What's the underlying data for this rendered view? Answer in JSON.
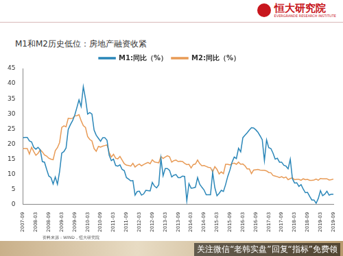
{
  "brand": {
    "name": "恒大研究院",
    "subtitle": "EVERGRANDE RESEARCH INSTITUTE"
  },
  "chart_data": {
    "type": "line",
    "title": "M1和M2历史低位：房地产融资收紧",
    "source": "资料来源：WIND，恒大研究院",
    "categories": [
      "2007-09",
      null,
      null,
      null,
      null,
      null,
      "2008-03",
      null,
      null,
      null,
      null,
      null,
      "2008-09",
      null,
      null,
      null,
      null,
      null,
      "2009-03",
      null,
      null,
      null,
      null,
      null,
      "2009-09",
      null,
      null,
      null,
      null,
      null,
      "2010-03",
      null,
      null,
      null,
      null,
      null,
      "2010-09",
      null,
      null,
      null,
      null,
      null,
      "2011-03",
      null,
      null,
      null,
      null,
      null,
      "2011-09",
      null,
      null,
      null,
      null,
      null,
      "2012-03",
      null,
      null,
      null,
      null,
      null,
      "2012-09",
      null,
      null,
      null,
      null,
      null,
      "2013-03",
      null,
      null,
      null,
      null,
      null,
      "2013-09",
      null,
      null,
      null,
      null,
      null,
      "2014-03",
      null,
      null,
      null,
      null,
      null,
      "2014-09",
      null,
      null,
      null,
      null,
      null,
      "2015-03",
      null,
      null,
      null,
      null,
      null,
      "2015-09",
      null,
      null,
      null,
      null,
      null,
      "2016-03",
      null,
      null,
      null,
      null,
      null,
      "2016-09",
      null,
      null,
      null,
      null,
      null,
      "2017-03",
      null,
      null,
      null,
      null,
      null,
      "2017-09",
      null,
      null,
      null,
      null,
      null,
      "2018-03",
      null,
      null,
      null,
      null,
      null,
      "2018-09",
      null,
      null,
      null,
      null,
      null,
      "2019-03",
      null,
      null,
      null,
      null,
      null,
      "2019-09"
    ],
    "series": [
      {
        "name": "M1:同比（%）",
        "color": "#2a86b8",
        "values": [
          22.1,
          22.2,
          22.2,
          21.0,
          20.7,
          18.9,
          18.3,
          18.9,
          18.1,
          14.2,
          14.0,
          11.6,
          9.4,
          8.9,
          6.8,
          9.1,
          6.7,
          10.9,
          17.0,
          17.5,
          18.7,
          24.8,
          26.4,
          27.7,
          29.5,
          32.0,
          34.6,
          32.4,
          39.0,
          35.0,
          29.9,
          30.4,
          29.9,
          24.6,
          22.9,
          21.9,
          20.9,
          22.1,
          22.1,
          21.2,
          16.3,
          14.5,
          15.0,
          12.9,
          12.7,
          13.1,
          11.6,
          11.2,
          8.9,
          8.4,
          7.8,
          7.9,
          3.1,
          4.3,
          4.4,
          3.1,
          3.5,
          4.7,
          4.6,
          4.5,
          7.3,
          6.1,
          5.5,
          6.5,
          15.3,
          9.5,
          11.9,
          11.9,
          11.3,
          9.1,
          9.7,
          9.9,
          8.9,
          8.9,
          9.4,
          9.3,
          1.2,
          6.9,
          5.4,
          5.5,
          5.7,
          8.9,
          6.7,
          5.7,
          4.8,
          3.2,
          3.2,
          3.2,
          10.6,
          5.6,
          2.9,
          3.7,
          4.7,
          4.3,
          6.6,
          9.3,
          11.4,
          14.0,
          15.7,
          15.2,
          18.6,
          17.4,
          22.1,
          22.9,
          23.7,
          24.6,
          25.4,
          25.3,
          24.7,
          23.9,
          22.7,
          21.4,
          14.5,
          21.4,
          18.8,
          18.5,
          17.0,
          15.0,
          15.3,
          14.0,
          14.0,
          13.0,
          12.7,
          11.8,
          15.0,
          8.5,
          7.1,
          7.2,
          6.0,
          6.6,
          5.1,
          3.9,
          4.0,
          2.7,
          1.5,
          1.5,
          0.4,
          2.0,
          4.6,
          2.9,
          3.4,
          4.4,
          3.1,
          3.4,
          3.4
        ]
      },
      {
        "name": "M2:同比（%）",
        "color": "#e89a55",
        "values": [
          18.5,
          18.5,
          18.5,
          16.7,
          18.9,
          17.5,
          16.3,
          16.9,
          18.1,
          17.4,
          16.4,
          16.0,
          15.3,
          15.0,
          14.8,
          17.8,
          18.8,
          20.5,
          25.5,
          26.0,
          25.7,
          28.5,
          28.4,
          28.5,
          29.3,
          29.4,
          29.7,
          27.7,
          26.1,
          25.5,
          22.5,
          21.5,
          21.0,
          18.5,
          17.6,
          19.2,
          19.0,
          19.3,
          19.5,
          19.7,
          17.2,
          15.7,
          16.6,
          15.3,
          15.1,
          15.9,
          14.7,
          13.5,
          13.0,
          12.9,
          12.7,
          13.6,
          12.4,
          13.0,
          13.4,
          12.8,
          13.2,
          13.6,
          13.9,
          13.5,
          14.8,
          14.1,
          13.9,
          13.8,
          15.9,
          15.2,
          15.7,
          16.1,
          15.8,
          14.0,
          14.5,
          14.7,
          14.2,
          14.3,
          14.2,
          13.6,
          13.2,
          13.3,
          12.1,
          13.2,
          13.4,
          14.7,
          13.5,
          12.8,
          12.9,
          12.6,
          12.3,
          12.2,
          10.8,
          12.5,
          11.6,
          10.1,
          10.8,
          10.2,
          13.3,
          13.3,
          13.1,
          13.5,
          13.7,
          13.3,
          14.0,
          13.3,
          13.4,
          12.8,
          11.8,
          11.8,
          10.2,
          11.4,
          11.5,
          11.6,
          11.4,
          11.3,
          11.3,
          11.1,
          10.6,
          10.5,
          9.6,
          9.4,
          9.2,
          8.9,
          9.2,
          8.8,
          9.1,
          8.2,
          8.6,
          8.8,
          8.2,
          8.3,
          8.3,
          8.0,
          8.5,
          8.2,
          8.3,
          8.0,
          8.0,
          8.1,
          8.4,
          8.0,
          8.6,
          8.5,
          8.5,
          8.5,
          8.1,
          8.2,
          8.4
        ]
      }
    ],
    "ylim": [
      0,
      45
    ],
    "yticks": [
      0,
      5,
      10,
      15,
      20,
      25,
      30,
      35,
      40,
      45
    ],
    "grid": false,
    "legend": "top"
  },
  "watermark": "关注微信“老韩实盘”回复“指标”免费领"
}
